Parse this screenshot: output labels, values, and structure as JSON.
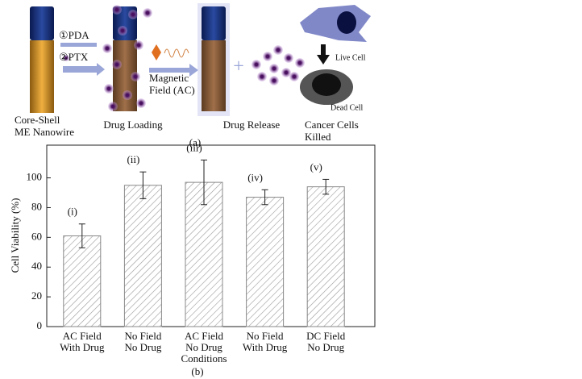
{
  "diagram": {
    "steps": [
      [
        "Core-Shell",
        "ME Nanowire"
      ],
      [
        "Drug Loading"
      ],
      [
        "Drug Release"
      ],
      [
        "Cancer Cells",
        "Killed"
      ]
    ],
    "reagents": [
      "①PDA",
      "②PTX"
    ],
    "field": [
      "Magnetic",
      "Field (AC)"
    ],
    "live": "Live Cell",
    "dead": "Dead Cell",
    "caption": "(a)"
  },
  "chart_data": {
    "type": "bar",
    "ylabel": "Cell Viability (%)",
    "caption": "(b)",
    "categories": [
      [
        "AC Field",
        "With Drug"
      ],
      [
        "No Field",
        "No Drug"
      ],
      [
        "AC Field",
        "No Drug",
        "Conditions"
      ],
      [
        "No Field",
        "With Drug"
      ],
      [
        "DC Field",
        "No Drug"
      ]
    ],
    "values": [
      61,
      95,
      97,
      87,
      94
    ],
    "errors": [
      8,
      9,
      15,
      5,
      5
    ],
    "annotations": [
      "(i)",
      "(ii)",
      "(iii)",
      "(iv)",
      "(v)"
    ],
    "ylim": [
      0,
      122
    ],
    "yticks": [
      0,
      20,
      40,
      60,
      80,
      100
    ],
    "color": "#888888"
  }
}
